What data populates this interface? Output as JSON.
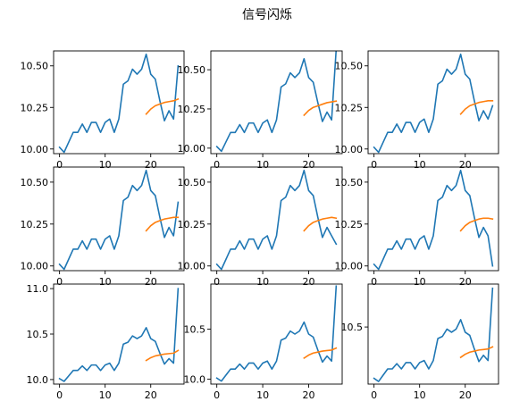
{
  "figure": {
    "suptitle": "信号闪烁"
  },
  "colors": {
    "series": "#1f77b4",
    "trend": "#ff7f0e",
    "axes": "#000000",
    "background": "#ffffff"
  },
  "chart_data": [
    {
      "type": "line",
      "grid": false,
      "xlim": [
        -1.3,
        27.3
      ],
      "ylim": [
        9.972,
        10.59
      ],
      "xticks": [
        0,
        10,
        20
      ],
      "xtick_labels": [
        "0",
        "10",
        "20"
      ],
      "yticks": [
        10.0,
        10.25,
        10.5
      ],
      "ytick_labels": [
        "10.00",
        "10.25",
        "10.50"
      ],
      "series": [
        {
          "x": [
            0,
            1,
            2,
            3,
            4,
            5,
            6,
            7,
            8,
            9,
            10,
            11,
            12,
            13,
            14,
            15,
            16,
            17,
            18,
            19,
            20,
            21,
            22,
            23,
            24,
            25,
            26
          ],
          "values": [
            10.01,
            9.98,
            10.04,
            10.1,
            10.1,
            10.15,
            10.1,
            10.16,
            10.16,
            10.1,
            10.16,
            10.18,
            10.1,
            10.18,
            10.39,
            10.41,
            10.48,
            10.45,
            10.48,
            10.57,
            10.45,
            10.42,
            10.29,
            10.17,
            10.23,
            10.18,
            10.5
          ]
        },
        {
          "x": [
            19,
            20,
            21,
            22,
            23,
            24,
            25,
            26
          ],
          "values": [
            10.21,
            10.24,
            10.26,
            10.27,
            10.28,
            10.285,
            10.29,
            10.3
          ]
        }
      ]
    },
    {
      "type": "line",
      "grid": false,
      "xlim": [
        -1.3,
        27.3
      ],
      "ylim": [
        9.965,
        10.62
      ],
      "xticks": [
        0,
        10,
        20
      ],
      "xtick_labels": [
        "0",
        "10",
        "20"
      ],
      "yticks": [
        10.0,
        10.25,
        10.5
      ],
      "ytick_labels": [
        "10.00",
        "10.25",
        "10.50"
      ],
      "series": [
        {
          "x": [
            0,
            1,
            2,
            3,
            4,
            5,
            6,
            7,
            8,
            9,
            10,
            11,
            12,
            13,
            14,
            15,
            16,
            17,
            18,
            19,
            20,
            21,
            22,
            23,
            24,
            25,
            26
          ],
          "values": [
            10.01,
            9.98,
            10.04,
            10.1,
            10.1,
            10.15,
            10.1,
            10.16,
            10.16,
            10.1,
            10.16,
            10.18,
            10.1,
            10.18,
            10.39,
            10.41,
            10.48,
            10.45,
            10.48,
            10.57,
            10.45,
            10.42,
            10.29,
            10.17,
            10.23,
            10.18,
            10.63
          ]
        },
        {
          "x": [
            19,
            20,
            21,
            22,
            23,
            24,
            25,
            26
          ],
          "values": [
            10.21,
            10.24,
            10.26,
            10.27,
            10.28,
            10.29,
            10.295,
            10.3
          ]
        }
      ]
    },
    {
      "type": "line",
      "grid": false,
      "xlim": [
        -1.3,
        27.3
      ],
      "ylim": [
        9.972,
        10.59
      ],
      "xticks": [
        0,
        10,
        20
      ],
      "xtick_labels": [
        "0",
        "10",
        "20"
      ],
      "yticks": [
        10.0,
        10.25,
        10.5
      ],
      "ytick_labels": [
        "10.00",
        "10.25",
        "10.50"
      ],
      "series": [
        {
          "x": [
            0,
            1,
            2,
            3,
            4,
            5,
            6,
            7,
            8,
            9,
            10,
            11,
            12,
            13,
            14,
            15,
            16,
            17,
            18,
            19,
            20,
            21,
            22,
            23,
            24,
            25,
            26
          ],
          "values": [
            10.01,
            9.98,
            10.04,
            10.1,
            10.1,
            10.15,
            10.1,
            10.16,
            10.16,
            10.1,
            10.16,
            10.18,
            10.1,
            10.18,
            10.39,
            10.41,
            10.48,
            10.45,
            10.48,
            10.57,
            10.45,
            10.42,
            10.29,
            10.17,
            10.23,
            10.18,
            10.26
          ]
        },
        {
          "x": [
            19,
            20,
            21,
            22,
            23,
            24,
            25,
            26
          ],
          "values": [
            10.21,
            10.24,
            10.26,
            10.27,
            10.28,
            10.285,
            10.29,
            10.29
          ]
        }
      ]
    },
    {
      "type": "line",
      "grid": false,
      "xlim": [
        -1.3,
        27.3
      ],
      "ylim": [
        9.972,
        10.59
      ],
      "xticks": [
        0,
        10,
        20
      ],
      "xtick_labels": [
        "0",
        "10",
        "20"
      ],
      "yticks": [
        10.0,
        10.25,
        10.5
      ],
      "ytick_labels": [
        "10.00",
        "10.25",
        "10.50"
      ],
      "series": [
        {
          "x": [
            0,
            1,
            2,
            3,
            4,
            5,
            6,
            7,
            8,
            9,
            10,
            11,
            12,
            13,
            14,
            15,
            16,
            17,
            18,
            19,
            20,
            21,
            22,
            23,
            24,
            25,
            26
          ],
          "values": [
            10.01,
            9.98,
            10.04,
            10.1,
            10.1,
            10.15,
            10.1,
            10.16,
            10.16,
            10.1,
            10.16,
            10.18,
            10.1,
            10.18,
            10.39,
            10.41,
            10.48,
            10.45,
            10.48,
            10.57,
            10.45,
            10.42,
            10.29,
            10.17,
            10.23,
            10.18,
            10.38
          ]
        },
        {
          "x": [
            19,
            20,
            21,
            22,
            23,
            24,
            25,
            26
          ],
          "values": [
            10.21,
            10.24,
            10.26,
            10.27,
            10.28,
            10.285,
            10.29,
            10.29
          ]
        }
      ]
    },
    {
      "type": "line",
      "grid": false,
      "xlim": [
        -1.3,
        27.3
      ],
      "ylim": [
        9.972,
        10.59
      ],
      "xticks": [
        0,
        10,
        20
      ],
      "xtick_labels": [
        "0",
        "10",
        "20"
      ],
      "yticks": [
        10.0,
        10.25,
        10.5
      ],
      "ytick_labels": [
        "10.00",
        "10.25",
        "10.50"
      ],
      "series": [
        {
          "x": [
            0,
            1,
            2,
            3,
            4,
            5,
            6,
            7,
            8,
            9,
            10,
            11,
            12,
            13,
            14,
            15,
            16,
            17,
            18,
            19,
            20,
            21,
            22,
            23,
            24,
            25,
            26
          ],
          "values": [
            10.01,
            9.98,
            10.04,
            10.1,
            10.1,
            10.15,
            10.1,
            10.16,
            10.16,
            10.1,
            10.16,
            10.18,
            10.1,
            10.18,
            10.39,
            10.41,
            10.48,
            10.45,
            10.48,
            10.57,
            10.45,
            10.42,
            10.29,
            10.17,
            10.23,
            10.18,
            10.13
          ]
        },
        {
          "x": [
            19,
            20,
            21,
            22,
            23,
            24,
            25,
            26
          ],
          "values": [
            10.21,
            10.24,
            10.26,
            10.27,
            10.28,
            10.285,
            10.29,
            10.285
          ]
        }
      ]
    },
    {
      "type": "line",
      "grid": false,
      "xlim": [
        -1.3,
        27.3
      ],
      "ylim": [
        9.972,
        10.59
      ],
      "xticks": [
        0,
        10,
        20
      ],
      "xtick_labels": [
        "0",
        "10",
        "20"
      ],
      "yticks": [
        10.0,
        10.25,
        10.5
      ],
      "ytick_labels": [
        "10.00",
        "10.25",
        "10.50"
      ],
      "series": [
        {
          "x": [
            0,
            1,
            2,
            3,
            4,
            5,
            6,
            7,
            8,
            9,
            10,
            11,
            12,
            13,
            14,
            15,
            16,
            17,
            18,
            19,
            20,
            21,
            22,
            23,
            24,
            25,
            26
          ],
          "values": [
            10.01,
            9.98,
            10.04,
            10.1,
            10.1,
            10.15,
            10.1,
            10.16,
            10.16,
            10.1,
            10.16,
            10.18,
            10.1,
            10.18,
            10.39,
            10.41,
            10.48,
            10.45,
            10.48,
            10.57,
            10.45,
            10.42,
            10.29,
            10.17,
            10.23,
            10.18,
            10.0
          ]
        },
        {
          "x": [
            19,
            20,
            21,
            22,
            23,
            24,
            25,
            26
          ],
          "values": [
            10.21,
            10.24,
            10.26,
            10.27,
            10.28,
            10.285,
            10.285,
            10.28
          ]
        }
      ]
    },
    {
      "type": "line",
      "grid": false,
      "xlim": [
        -1.3,
        27.3
      ],
      "ylim": [
        9.95,
        11.05
      ],
      "xticks": [
        0,
        10,
        20
      ],
      "xtick_labels": [
        "0",
        "10",
        "20"
      ],
      "yticks": [
        10.0,
        10.5,
        11.0
      ],
      "ytick_labels": [
        "10.0",
        "10.5",
        "11.0"
      ],
      "series": [
        {
          "x": [
            0,
            1,
            2,
            3,
            4,
            5,
            6,
            7,
            8,
            9,
            10,
            11,
            12,
            13,
            14,
            15,
            16,
            17,
            18,
            19,
            20,
            21,
            22,
            23,
            24,
            25,
            26
          ],
          "values": [
            10.01,
            9.98,
            10.04,
            10.1,
            10.1,
            10.15,
            10.1,
            10.16,
            10.16,
            10.1,
            10.16,
            10.18,
            10.1,
            10.18,
            10.39,
            10.41,
            10.48,
            10.45,
            10.48,
            10.57,
            10.45,
            10.42,
            10.29,
            10.17,
            10.23,
            10.18,
            11.0
          ]
        },
        {
          "x": [
            19,
            20,
            21,
            22,
            23,
            24,
            25,
            26
          ],
          "values": [
            10.21,
            10.24,
            10.26,
            10.27,
            10.28,
            10.285,
            10.29,
            10.32
          ]
        }
      ]
    },
    {
      "type": "line",
      "grid": false,
      "xlim": [
        -1.3,
        27.3
      ],
      "ylim": [
        9.95,
        10.95
      ],
      "xticks": [
        0,
        10,
        20
      ],
      "xtick_labels": [
        "0",
        "10",
        "20"
      ],
      "yticks": [
        10.0,
        10.5
      ],
      "ytick_labels": [
        "10.0",
        "10.5"
      ],
      "series": [
        {
          "x": [
            0,
            1,
            2,
            3,
            4,
            5,
            6,
            7,
            8,
            9,
            10,
            11,
            12,
            13,
            14,
            15,
            16,
            17,
            18,
            19,
            20,
            21,
            22,
            23,
            24,
            25,
            26
          ],
          "values": [
            10.01,
            9.98,
            10.04,
            10.1,
            10.1,
            10.15,
            10.1,
            10.16,
            10.16,
            10.1,
            10.16,
            10.18,
            10.1,
            10.18,
            10.39,
            10.41,
            10.48,
            10.45,
            10.48,
            10.57,
            10.45,
            10.42,
            10.29,
            10.17,
            10.23,
            10.18,
            10.93
          ]
        },
        {
          "x": [
            19,
            20,
            21,
            22,
            23,
            24,
            25,
            26
          ],
          "values": [
            10.21,
            10.24,
            10.26,
            10.27,
            10.28,
            10.285,
            10.29,
            10.31
          ]
        }
      ]
    },
    {
      "type": "line",
      "grid": false,
      "xlim": [
        -1.3,
        27.3
      ],
      "ylim": [
        9.955,
        10.91
      ],
      "xticks": [
        0,
        10,
        20
      ],
      "xtick_labels": [
        "0",
        "10",
        "20"
      ],
      "yticks": [
        10.5
      ],
      "ytick_labels": [
        "10.5"
      ],
      "series": [
        {
          "x": [
            0,
            1,
            2,
            3,
            4,
            5,
            6,
            7,
            8,
            9,
            10,
            11,
            12,
            13,
            14,
            15,
            16,
            17,
            18,
            19,
            20,
            21,
            22,
            23,
            24,
            25,
            26
          ],
          "values": [
            10.01,
            9.98,
            10.04,
            10.1,
            10.1,
            10.15,
            10.1,
            10.16,
            10.16,
            10.1,
            10.16,
            10.18,
            10.1,
            10.18,
            10.39,
            10.41,
            10.48,
            10.45,
            10.48,
            10.57,
            10.45,
            10.42,
            10.29,
            10.17,
            10.23,
            10.18,
            10.87
          ]
        },
        {
          "x": [
            19,
            20,
            21,
            22,
            23,
            24,
            25,
            26
          ],
          "values": [
            10.21,
            10.24,
            10.26,
            10.27,
            10.28,
            10.285,
            10.29,
            10.31
          ]
        }
      ]
    }
  ]
}
